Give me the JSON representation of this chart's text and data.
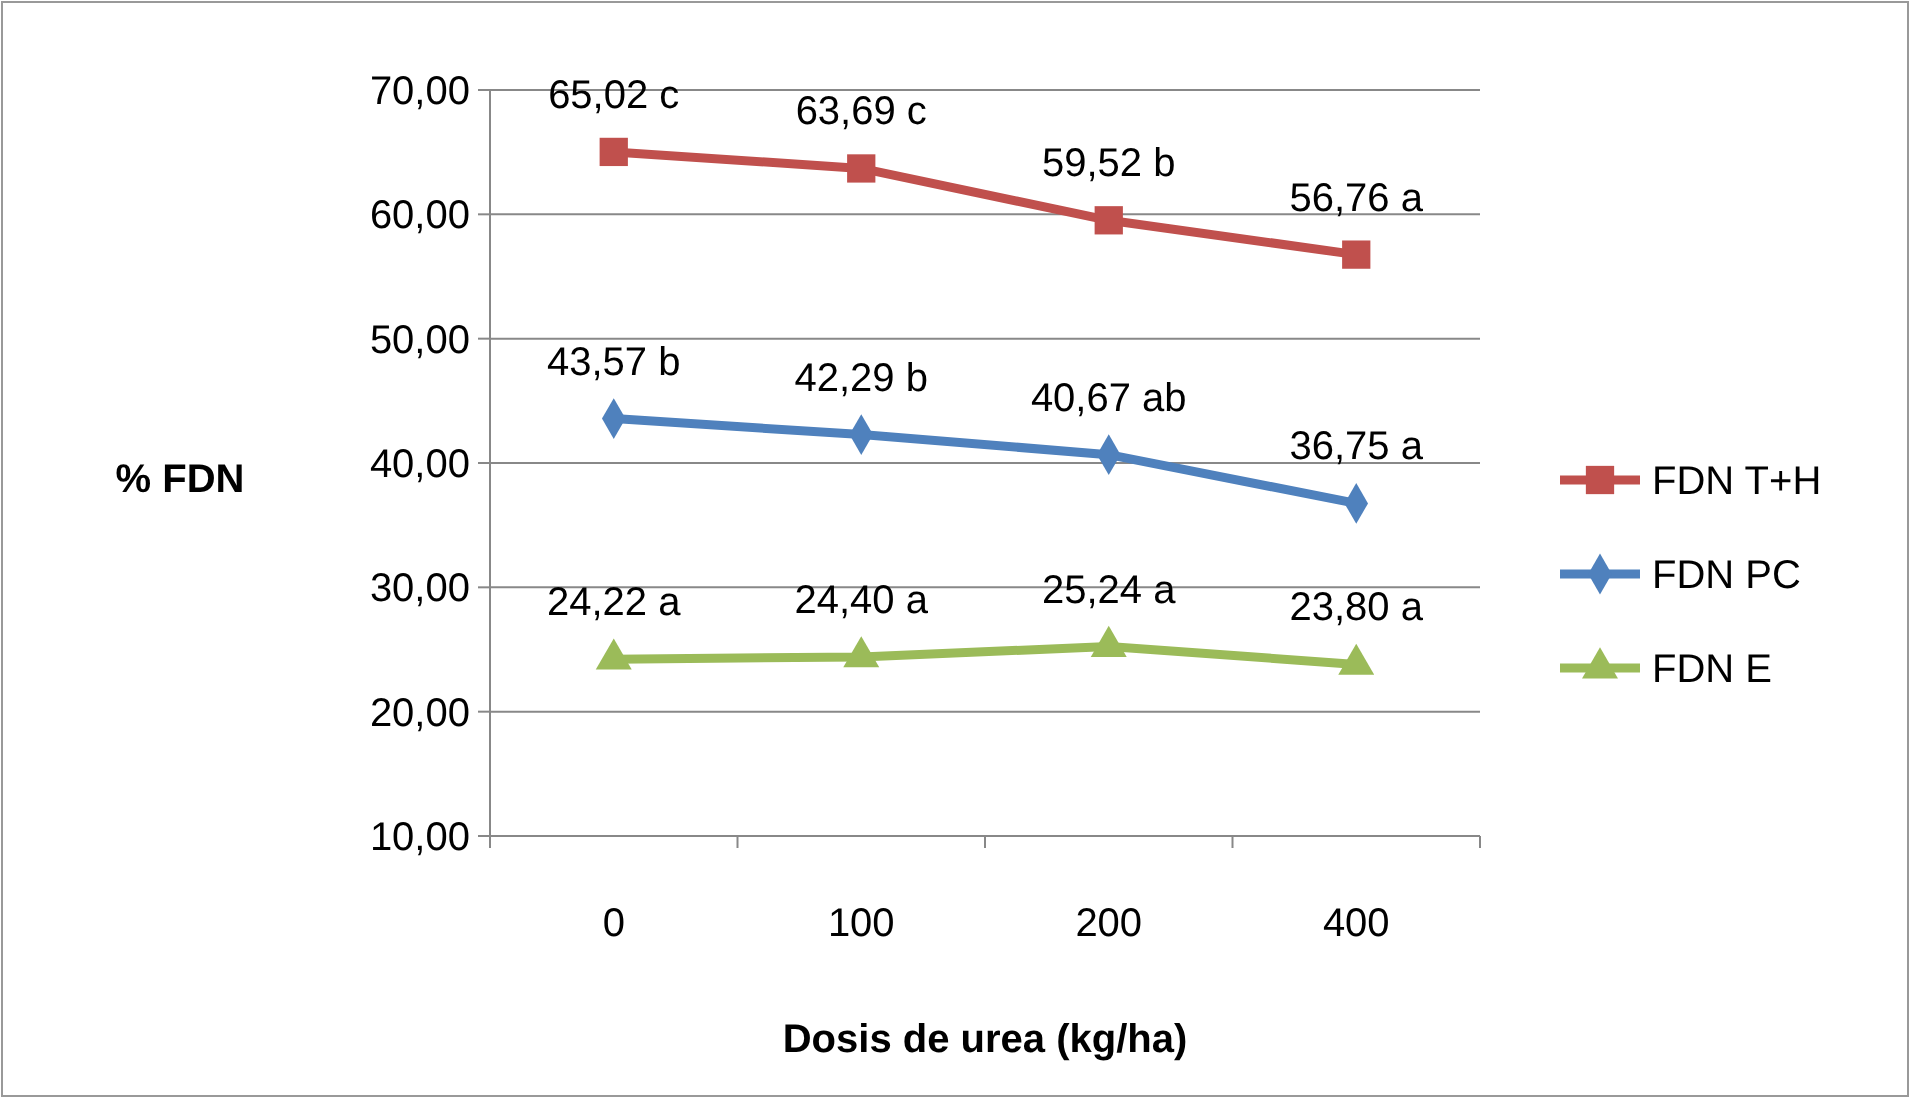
{
  "chart_data": {
    "type": "line",
    "xlabel": "Dosis de urea (kg/ha)",
    "ylabel": "% FDN",
    "categories": [
      "0",
      "100",
      "200",
      "400"
    ],
    "series": [
      {
        "name": "FDN T+H",
        "color": "#c0504d",
        "marker": "square",
        "values": [
          65.02,
          63.69,
          59.52,
          56.76
        ],
        "value_labels": [
          "65,02 c",
          "63,69 c",
          "59,52 b",
          "56,76 a"
        ]
      },
      {
        "name": "FDN PC",
        "color": "#4f81bd",
        "marker": "diamond",
        "values": [
          43.57,
          42.29,
          40.67,
          36.75
        ],
        "value_labels": [
          "43,57 b",
          "42,29 b",
          "40,67 ab",
          "36,75 a"
        ]
      },
      {
        "name": "FDN E",
        "color": "#9bbb59",
        "marker": "triangle",
        "values": [
          24.22,
          24.4,
          25.24,
          23.8
        ],
        "value_labels": [
          "24,22 a",
          "24,40 a",
          "25,24 a",
          "23,80 a"
        ]
      }
    ],
    "ylim": [
      10,
      70
    ],
    "yticks": [
      {
        "value": 10,
        "label": "10,00"
      },
      {
        "value": 20,
        "label": "20,00"
      },
      {
        "value": 30,
        "label": "30,00"
      },
      {
        "value": 40,
        "label": "40,00"
      },
      {
        "value": 50,
        "label": "50,00"
      },
      {
        "value": 60,
        "label": "60,00"
      },
      {
        "value": 70,
        "label": "70,00"
      }
    ],
    "grid": "y",
    "legend": "right",
    "line_style": "solid"
  }
}
